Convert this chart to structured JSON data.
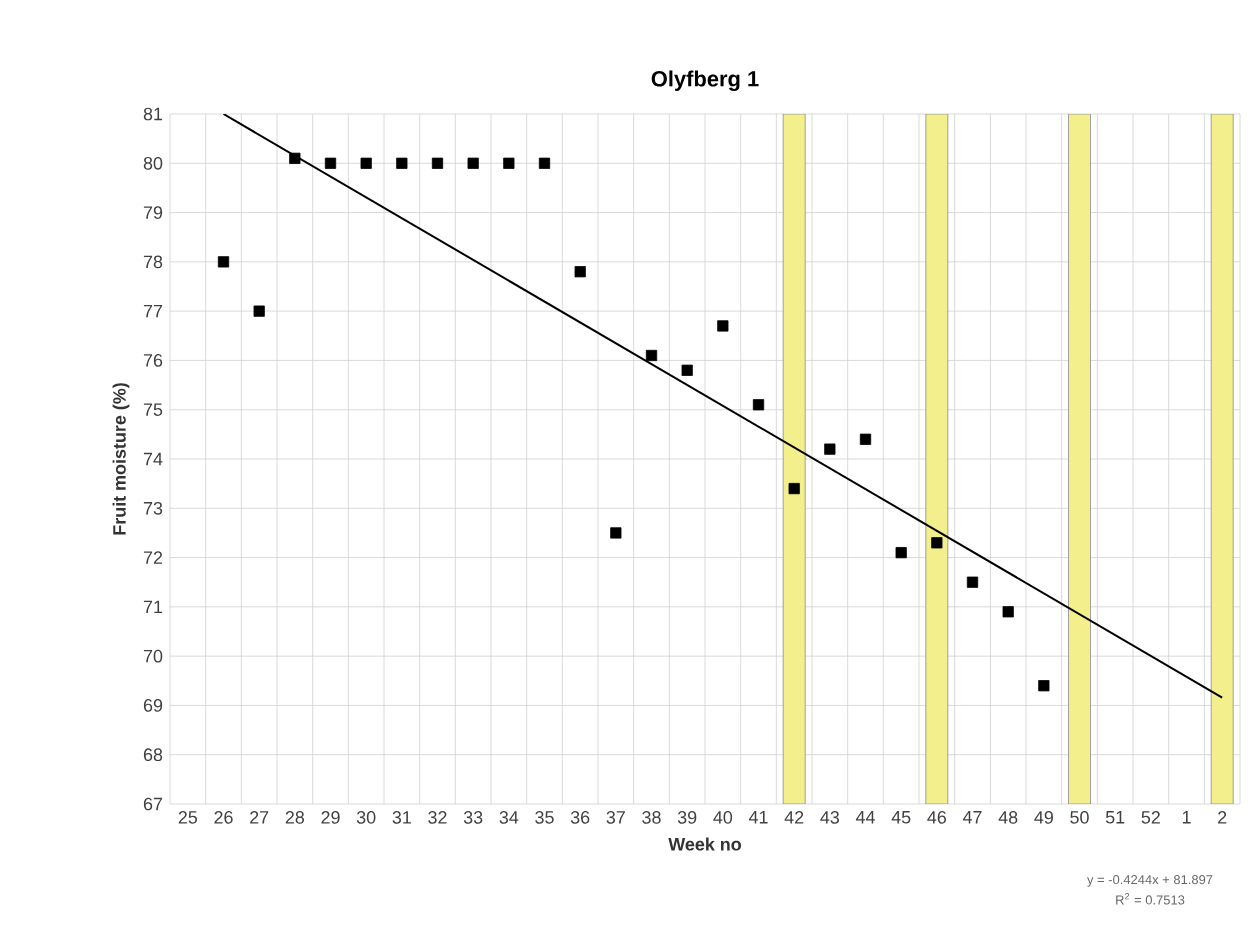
{
  "chart_data": {
    "type": "scatter",
    "title": "Olyfberg 1",
    "xlabel": "Week no",
    "ylabel": "Fruit moisture (%)",
    "categories": [
      "25",
      "26",
      "27",
      "28",
      "29",
      "30",
      "31",
      "32",
      "33",
      "34",
      "35",
      "36",
      "37",
      "38",
      "39",
      "40",
      "41",
      "42",
      "43",
      "44",
      "45",
      "46",
      "47",
      "48",
      "49",
      "50",
      "51",
      "52",
      "1",
      "2"
    ],
    "series": [
      {
        "type": "bar",
        "color": "#f2ef8c",
        "values": [
          null,
          null,
          null,
          null,
          null,
          null,
          null,
          null,
          null,
          null,
          null,
          null,
          null,
          null,
          null,
          null,
          null,
          81,
          null,
          null,
          null,
          81,
          null,
          null,
          null,
          81,
          null,
          null,
          null,
          81
        ]
      },
      {
        "color": "#000000",
        "marker": "square",
        "values": [
          null,
          78.0,
          77.0,
          80.1,
          80,
          80,
          80,
          80,
          80,
          80,
          80,
          77.8,
          72.5,
          76.1,
          75.8,
          76.7,
          75.1,
          73.4,
          74.2,
          74.4,
          72.1,
          72.3,
          71.5,
          70.9,
          69.4,
          null,
          null,
          null,
          null,
          null
        ]
      },
      {
        "type": "line",
        "color": "#000000",
        "x": [
          "26",
          "2"
        ],
        "values": [
          81.0,
          69.16
        ]
      }
    ],
    "ylim": [
      67,
      81
    ],
    "yticks": [
      67,
      68,
      69,
      70,
      71,
      72,
      73,
      74,
      75,
      76,
      77,
      78,
      79,
      80,
      81
    ],
    "grid": true,
    "annotations": [
      "y = -0.4244x + 81.897",
      "R$^{2}$ = 0.7513"
    ]
  }
}
